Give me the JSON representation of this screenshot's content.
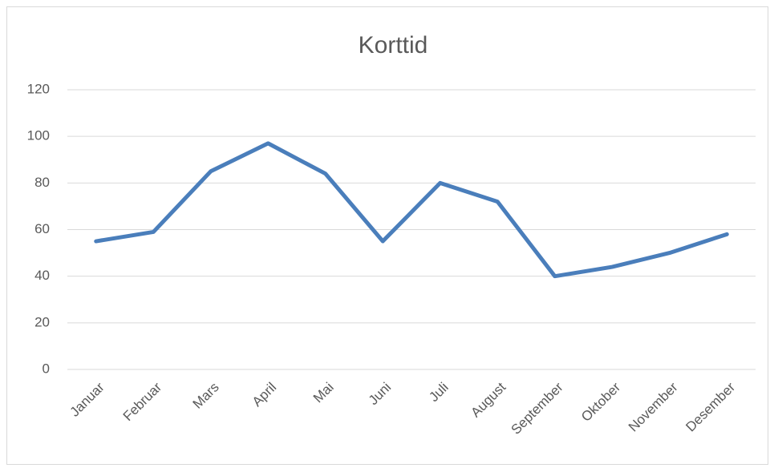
{
  "chart_data": {
    "type": "line",
    "title": "Korttid",
    "categories": [
      "Januar",
      "Februar",
      "Mars",
      "April",
      "Mai",
      "Juni",
      "Juli",
      "August",
      "September",
      "Oktober",
      "November",
      "Desember"
    ],
    "series": [
      {
        "name": "Korttid",
        "color": "#4a7ebb",
        "values": [
          55,
          59,
          85,
          97,
          84,
          55,
          80,
          72,
          40,
          44,
          50,
          58
        ]
      }
    ],
    "ylim": [
      0,
      120
    ],
    "yticks": [
      0,
      20,
      40,
      60,
      80,
      100,
      120
    ],
    "grid": true
  }
}
